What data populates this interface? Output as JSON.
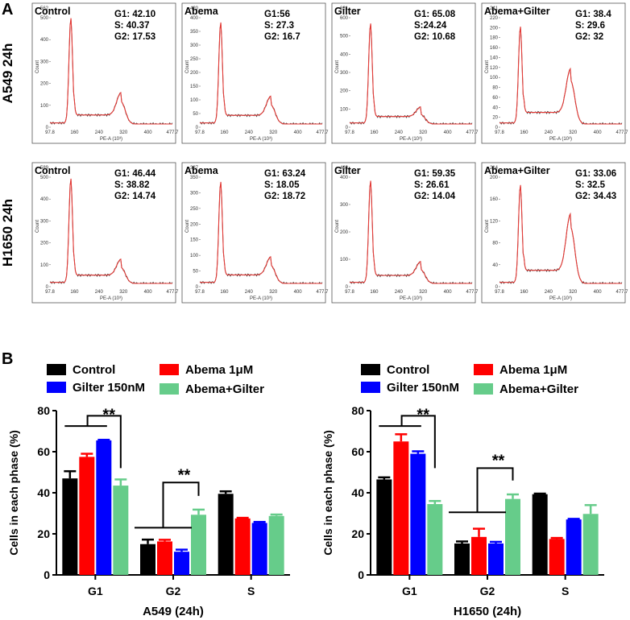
{
  "panel_a": {
    "letter": "A",
    "rows": [
      {
        "label": "A549 24h",
        "histograms": [
          {
            "title": "Control",
            "g1": "G1: 42.10",
            "s": "S: 40.37",
            "g2": "G2: 17.53",
            "ymax": "562",
            "yticks": [
              "500",
              "400",
              "300",
              "200",
              "100",
              "0"
            ],
            "xticks": [
              "97.8",
              "160",
              "240",
              "320",
              "400",
              "477.7"
            ],
            "xlabel": "PE-A (10³)",
            "ylabel": "Count",
            "peak1": 1.0,
            "peak2": 0.21
          },
          {
            "title": "Abema",
            "g1": "G1:56",
            "s": "S: 27.3",
            "g2": "G2: 16.7",
            "ymax": "420",
            "yticks": [
              "400",
              "350",
              "300",
              "250",
              "200",
              "150",
              "100",
              "50",
              "0"
            ],
            "xticks": [
              "97.8",
              "160",
              "240",
              "320",
              "400",
              "477.7"
            ],
            "xlabel": "PE-A (10³)",
            "ylabel": "Count",
            "peak1": 0.96,
            "peak2": 0.18
          },
          {
            "title": "Gilter",
            "g1": "G1: 65.08",
            "s": "S:24.24",
            "g2": "G2: 10.68",
            "ymax": "621",
            "yticks": [
              "600",
              "500",
              "400",
              "300",
              "200",
              "100",
              "0"
            ],
            "xticks": [
              "97.8",
              "160",
              "240",
              "320",
              "400",
              "477.7"
            ],
            "xlabel": "PE-A (10³)",
            "ylabel": "Count",
            "peak1": 0.95,
            "peak2": 0.09
          },
          {
            "title": "Abema+Gilter",
            "g1": "G1: 38.4",
            "s": "S: 29.6",
            "g2": "G2: 32",
            "ymax": "241",
            "yticks": [
              "220",
              "200",
              "180",
              "160",
              "140",
              "120",
              "100",
              "80",
              "60",
              "40",
              "20",
              "0"
            ],
            "xticks": [
              "97.8",
              "160",
              "240",
              "320",
              "400",
              "477.7"
            ],
            "xlabel": "PE-A (10³)",
            "ylabel": "Count",
            "peak1": 0.92,
            "peak2": 0.41
          }
        ]
      },
      {
        "label": "H1650  24h",
        "histograms": [
          {
            "title": "Control",
            "g1": "G1: 46.44",
            "s": "S: 38.82",
            "g2": "G2: 14.74",
            "ymax": "589",
            "yticks": [
              "500",
              "400",
              "300",
              "200",
              "100",
              "0"
            ],
            "xticks": [
              "97.8",
              "160",
              "240",
              "320",
              "400",
              "477.7"
            ],
            "xlabel": "PE-A (10³)",
            "ylabel": "Count",
            "peak1": 0.99,
            "peak2": 0.15
          },
          {
            "title": "Abema",
            "g1": "G1: 63.24",
            "s": "S: 18.05",
            "g2": "G2: 18.72",
            "ymax": "387",
            "yticks": [
              "350",
              "300",
              "250",
              "200",
              "150",
              "100",
              "50",
              "0"
            ],
            "xticks": [
              "97.8",
              "160",
              "240",
              "320",
              "400",
              "477.7"
            ],
            "xlabel": "PE-A (10³)",
            "ylabel": "Count",
            "peak1": 0.96,
            "peak2": 0.17
          },
          {
            "title": "Gilter",
            "g1": "G1: 59.35",
            "s": "S: 26.61",
            "g2": "G2: 14.04",
            "ymax": "463",
            "yticks": [
              "400",
              "300",
              "200",
              "100",
              "0"
            ],
            "xticks": [
              "97.8",
              "160",
              "240",
              "320",
              "400",
              "477.7"
            ],
            "xlabel": "PE-A (10³)",
            "ylabel": "Count",
            "peak1": 0.97,
            "peak2": 0.13
          },
          {
            "title": "Abema+Gilter",
            "g1": "G1: 33.06",
            "s": "S: 32.5",
            "g2": "G2: 34.43",
            "ymax": "214",
            "yticks": [
              "200",
              "160",
              "120",
              "80",
              "40",
              "0"
            ],
            "xticks": [
              "97.8",
              "160",
              "240",
              "320",
              "400",
              "477.7"
            ],
            "xlabel": "PE-A (10³)",
            "ylabel": "Count",
            "peak1": 0.93,
            "peak2": 0.53
          }
        ]
      }
    ]
  },
  "panel_b": {
    "letter": "B",
    "legend": [
      {
        "label": "Control",
        "color": "#000000"
      },
      {
        "label": "Abema 1μM",
        "color": "#ff0000"
      },
      {
        "label": "Gilter 150nM",
        "color": "#0000ff"
      },
      {
        "label": "Abema+Gilter",
        "color": "#66cc8a"
      }
    ]
  },
  "chart_data": [
    {
      "type": "bar",
      "title": "A549 (24h)",
      "xlabel": "",
      "ylabel": "Cells in each phase (%)",
      "ylim": [
        0,
        80
      ],
      "yticks": [
        "0",
        "20",
        "40",
        "60",
        "80"
      ],
      "categories": [
        "G1",
        "G2",
        "S"
      ],
      "series": [
        {
          "name": "Control",
          "values": [
            47,
            15,
            39.5
          ],
          "errors": [
            3.5,
            2.2,
            1.2
          ]
        },
        {
          "name": "Abema 1μM",
          "values": [
            57.5,
            16.3,
            27.5
          ],
          "errors": [
            1.5,
            0.8,
            0.3
          ]
        },
        {
          "name": "Gilter 150nM",
          "values": [
            65.5,
            11.3,
            25.3
          ],
          "errors": [
            0.3,
            1.0,
            0.5
          ]
        },
        {
          "name": "Abema+Gilter",
          "values": [
            43.5,
            29.3,
            28.7
          ],
          "errors": [
            3.0,
            2.5,
            0.7
          ]
        }
      ],
      "annotations": [
        {
          "text": "**",
          "category": "G1",
          "comparison": "treatments vs Abema+Gilter"
        },
        {
          "text": "**",
          "category": "G2",
          "comparison": "treatments vs Abema+Gilter"
        }
      ]
    },
    {
      "type": "bar",
      "title": "H1650 (24h)",
      "xlabel": "",
      "ylabel": "Cells in each phase (%)",
      "ylim": [
        0,
        80
      ],
      "yticks": [
        "0",
        "20",
        "40",
        "60",
        "80"
      ],
      "categories": [
        "G1",
        "G2",
        "S"
      ],
      "series": [
        {
          "name": "Control",
          "values": [
            46.5,
            15.3,
            39.3
          ],
          "errors": [
            1.0,
            1.0,
            0.3
          ]
        },
        {
          "name": "Abema 1μM",
          "values": [
            65,
            18.5,
            17.5
          ],
          "errors": [
            3.5,
            4.0,
            0.5
          ]
        },
        {
          "name": "Gilter 150nM",
          "values": [
            59,
            15.3,
            27
          ],
          "errors": [
            1.2,
            0.8,
            0.3
          ]
        },
        {
          "name": "Abema+Gilter",
          "values": [
            34.5,
            37,
            29.7
          ],
          "errors": [
            1.5,
            2.2,
            4.3
          ]
        }
      ],
      "annotations": [
        {
          "text": "**",
          "category": "G1",
          "comparison": "treatments vs Abema+Gilter"
        },
        {
          "text": "**",
          "category": "G2",
          "comparison": "treatments vs Abema+Gilter"
        }
      ]
    }
  ]
}
